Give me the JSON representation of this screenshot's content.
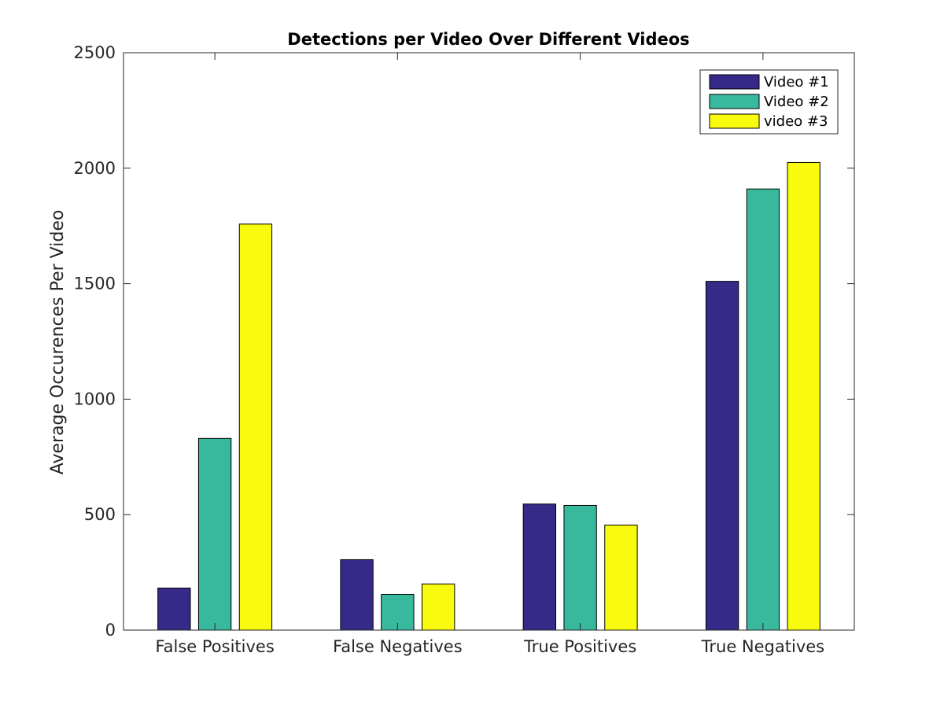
{
  "chart_data": {
    "type": "bar",
    "title": "Detections per Video Over Different Videos",
    "xlabel": "",
    "ylabel": "Average Occurences Per Video",
    "categories": [
      "False Positives",
      "False Negatives",
      "True Positives",
      "True Negatives"
    ],
    "series": [
      {
        "name": "Video #1",
        "values": [
          182,
          305,
          546,
          1510
        ],
        "color": "#352a87"
      },
      {
        "name": "Video #2",
        "values": [
          830,
          155,
          540,
          1910
        ],
        "color": "#38b99e"
      },
      {
        "name": "video #3",
        "values": [
          1758,
          200,
          455,
          2025
        ],
        "color": "#f9fb0e"
      }
    ],
    "ylim": [
      0,
      2500
    ],
    "yticks": [
      0,
      500,
      1000,
      1500,
      2000,
      2500
    ],
    "grid": false,
    "legend_position": "top-right"
  }
}
